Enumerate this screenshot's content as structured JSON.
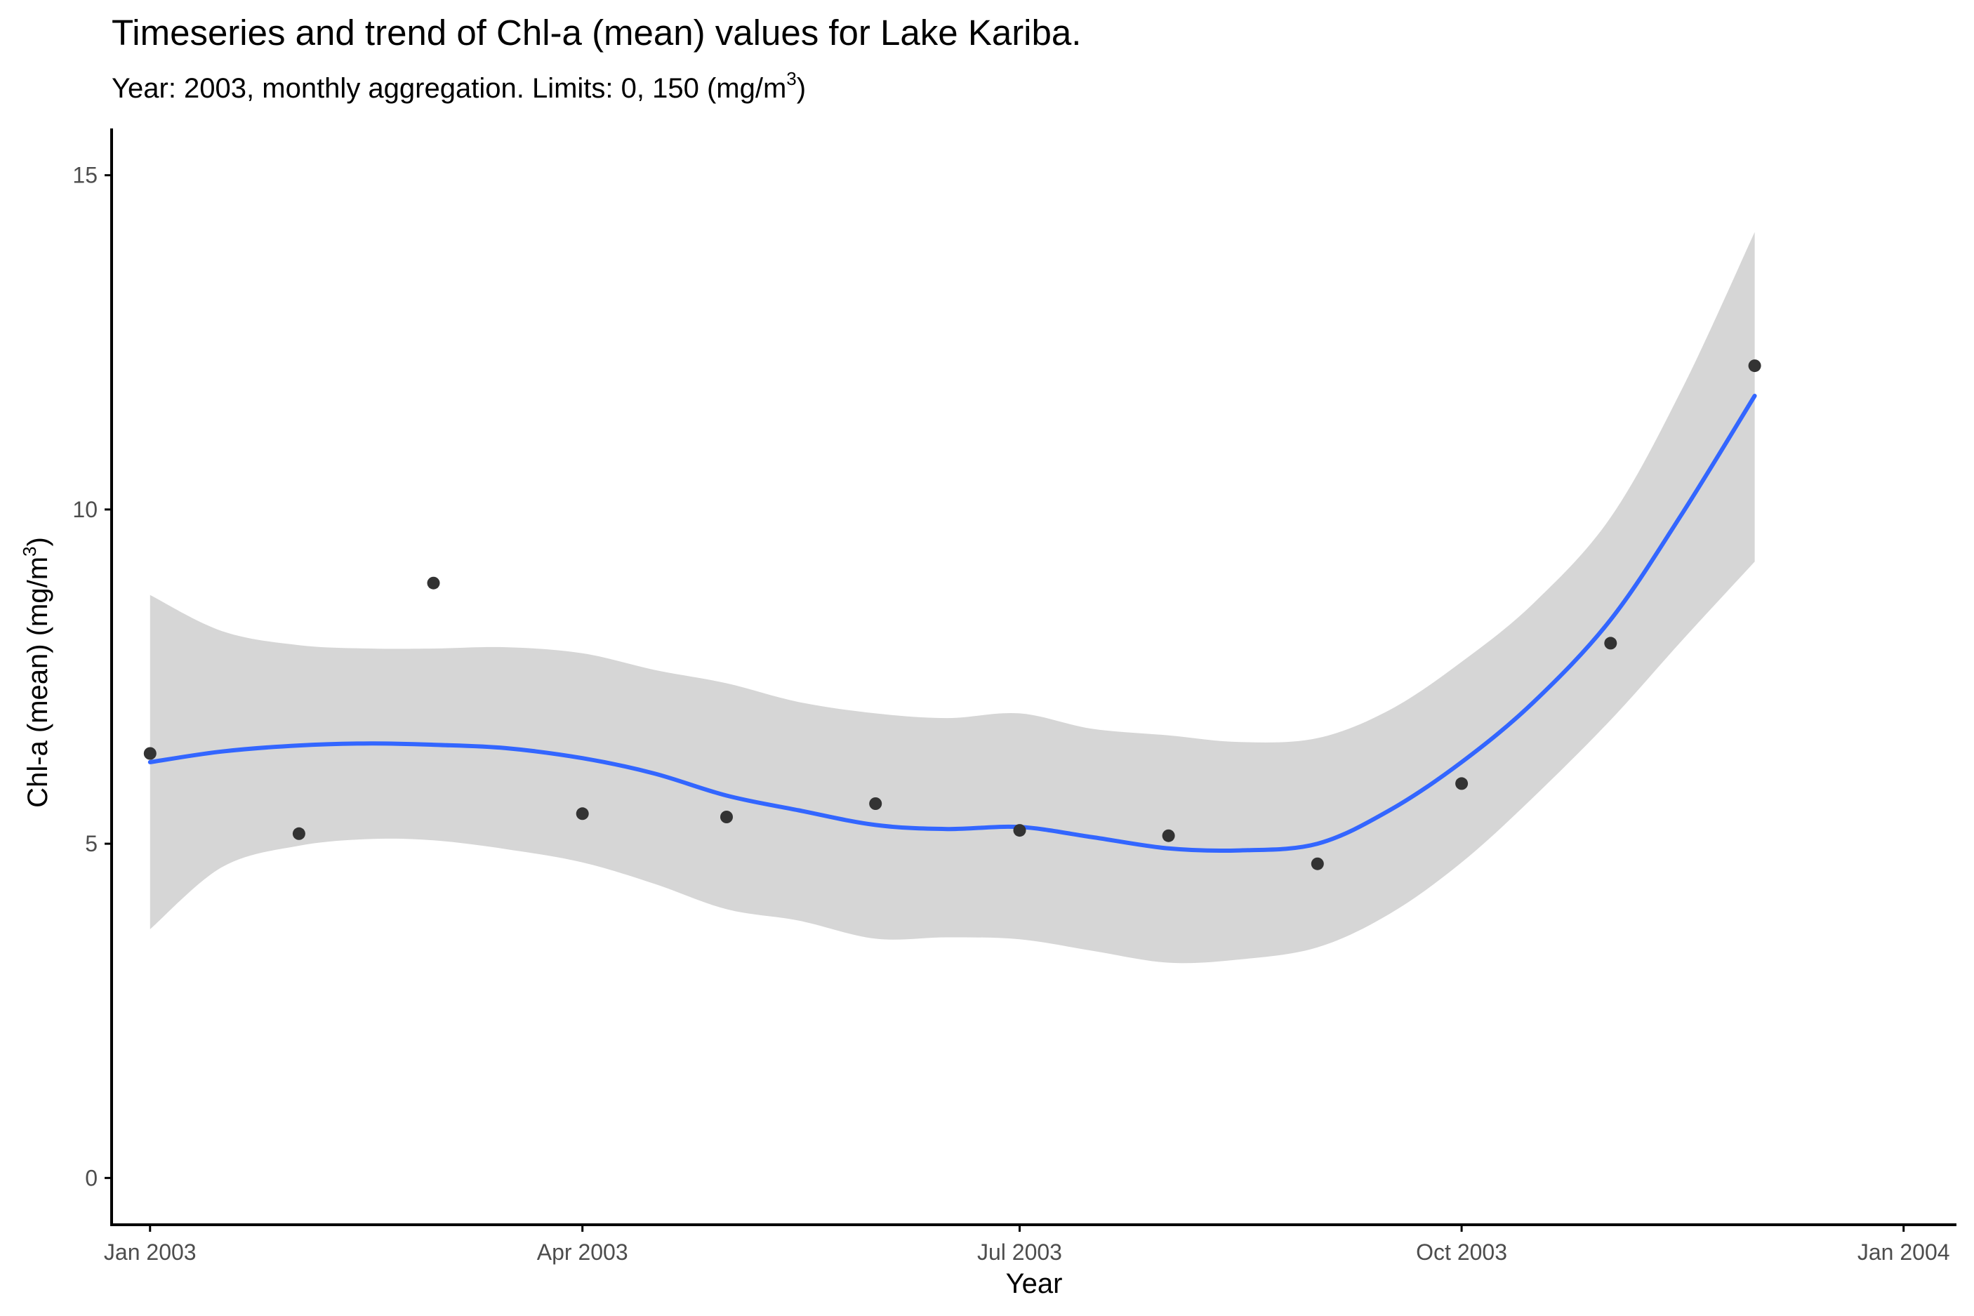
{
  "chart_data": {
    "type": "scatter",
    "title": "Timeseries and trend of Chl-a (mean) values for Lake Kariba.",
    "subtitle_prefix": "Year: 2003, monthly aggregation. Limits: 0, 150 (mg/m",
    "subtitle_exponent": "3",
    "subtitle_suffix": ")",
    "xlabel": "Year",
    "ylabel": "Chl-a (mean) (mg/m",
    "ylabel_exponent": "3",
    "ylabel_suffix": ")",
    "xlim": [
      "2002-12-24",
      "2004-01-12"
    ],
    "ylim": [
      -0.7,
      15.7
    ],
    "x_ticks": [
      {
        "label": "Jan 2003",
        "date": "2003-01-01"
      },
      {
        "label": "Apr 2003",
        "date": "2003-04-01"
      },
      {
        "label": "Jul 2003",
        "date": "2003-07-01"
      },
      {
        "label": "Oct 2003",
        "date": "2003-10-01"
      },
      {
        "label": "Jan 2004",
        "date": "2004-01-01"
      }
    ],
    "y_ticks": [
      {
        "label": "0",
        "value": 0
      },
      {
        "label": "5",
        "value": 5
      },
      {
        "label": "10",
        "value": 10
      },
      {
        "label": "15",
        "value": 15
      }
    ],
    "grid": false,
    "points": [
      {
        "x": "2003-01-01",
        "y": 6.35
      },
      {
        "x": "2003-02-01",
        "y": 5.15
      },
      {
        "x": "2003-03-01",
        "y": 8.9
      },
      {
        "x": "2003-04-01",
        "y": 5.45
      },
      {
        "x": "2003-05-01",
        "y": 5.4
      },
      {
        "x": "2003-06-01",
        "y": 5.6
      },
      {
        "x": "2003-07-01",
        "y": 5.2
      },
      {
        "x": "2003-08-01",
        "y": 5.12
      },
      {
        "x": "2003-09-01",
        "y": 4.7
      },
      {
        "x": "2003-10-01",
        "y": 5.9
      },
      {
        "x": "2003-11-01",
        "y": 8.0
      },
      {
        "x": "2003-12-01",
        "y": 12.15
      }
    ],
    "trend": [
      {
        "x": "2003-01-01",
        "y": 6.22,
        "lo": 3.72,
        "hi": 8.72
      },
      {
        "x": "2003-01-16",
        "y": 6.38,
        "lo": 4.65,
        "hi": 8.18
      },
      {
        "x": "2003-02-01",
        "y": 6.47,
        "lo": 4.97,
        "hi": 7.97
      },
      {
        "x": "2003-02-16",
        "y": 6.5,
        "lo": 5.07,
        "hi": 7.92
      },
      {
        "x": "2003-03-01",
        "y": 6.48,
        "lo": 5.05,
        "hi": 7.92
      },
      {
        "x": "2003-03-16",
        "y": 6.43,
        "lo": 4.92,
        "hi": 7.94
      },
      {
        "x": "2003-04-01",
        "y": 6.28,
        "lo": 4.72,
        "hi": 7.85
      },
      {
        "x": "2003-04-16",
        "y": 6.05,
        "lo": 4.4,
        "hi": 7.6
      },
      {
        "x": "2003-05-01",
        "y": 5.72,
        "lo": 4.02,
        "hi": 7.4
      },
      {
        "x": "2003-05-16",
        "y": 5.5,
        "lo": 3.85,
        "hi": 7.12
      },
      {
        "x": "2003-06-01",
        "y": 5.28,
        "lo": 3.58,
        "hi": 6.95
      },
      {
        "x": "2003-06-16",
        "y": 5.22,
        "lo": 3.6,
        "hi": 6.88
      },
      {
        "x": "2003-07-01",
        "y": 5.25,
        "lo": 3.57,
        "hi": 6.95
      },
      {
        "x": "2003-07-16",
        "y": 5.1,
        "lo": 3.4,
        "hi": 6.72
      },
      {
        "x": "2003-08-01",
        "y": 4.93,
        "lo": 3.22,
        "hi": 6.62
      },
      {
        "x": "2003-08-16",
        "y": 4.9,
        "lo": 3.27,
        "hi": 6.52
      },
      {
        "x": "2003-09-01",
        "y": 5.0,
        "lo": 3.45,
        "hi": 6.58
      },
      {
        "x": "2003-09-16",
        "y": 5.5,
        "lo": 3.95,
        "hi": 7.0
      },
      {
        "x": "2003-10-01",
        "y": 6.22,
        "lo": 4.72,
        "hi": 7.72
      },
      {
        "x": "2003-10-16",
        "y": 7.12,
        "lo": 5.7,
        "hi": 8.6
      },
      {
        "x": "2003-11-01",
        "y": 8.35,
        "lo": 6.85,
        "hi": 9.88
      },
      {
        "x": "2003-11-16",
        "y": 9.95,
        "lo": 8.05,
        "hi": 11.82
      },
      {
        "x": "2003-12-01",
        "y": 11.7,
        "lo": 9.22,
        "hi": 14.15
      }
    ],
    "colors": {
      "points": "#333333",
      "trend_line": "#3366ff",
      "confidence_band": "#d6d6d6",
      "axis": "#000000",
      "tick_label": "#4d4d4d"
    }
  }
}
